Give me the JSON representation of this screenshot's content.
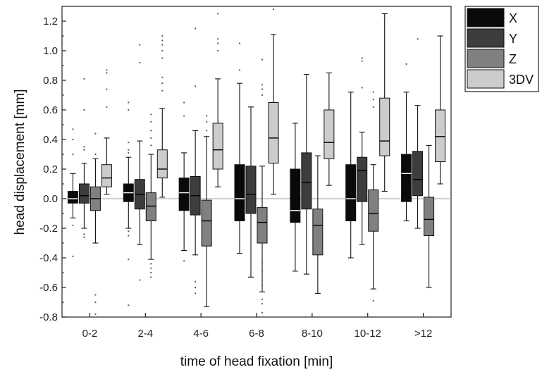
{
  "chart_data": {
    "type": "boxplot",
    "xlabel": "time of head fixation [min]",
    "ylabel": "head displacement [mm]",
    "ylim": [
      -0.8,
      1.3
    ],
    "yticks": [
      "-0.8",
      "-0.6",
      "-0.4",
      "-0.2",
      "0.0",
      "0.2",
      "0.4",
      "0.6",
      "0.8",
      "1.0",
      "1.2"
    ],
    "categories": [
      "0-2",
      "2-4",
      "4-6",
      "6-8",
      "8-10",
      "10-12",
      ">12"
    ],
    "reference_line": 0,
    "legend_position": "outside-top-right",
    "series": [
      {
        "name": "X",
        "color": "#0a0a0a",
        "median_color": "#ffffff",
        "boxes": [
          {
            "wlo": -0.13,
            "q1": -0.03,
            "median": 0.0,
            "q3": 0.05,
            "whi": 0.17,
            "outliers": [
              0.47,
              0.4,
              0.3,
              -0.18,
              -0.39
            ]
          },
          {
            "wlo": -0.2,
            "q1": -0.02,
            "median": 0.04,
            "q3": 0.1,
            "whi": 0.28,
            "outliers": [
              0.65,
              0.6,
              0.38,
              0.33,
              0.31,
              -0.22,
              -0.25,
              -0.41,
              -0.72
            ]
          },
          {
            "wlo": -0.35,
            "q1": -0.08,
            "median": 0.04,
            "q3": 0.14,
            "whi": 0.31,
            "outliers": [
              0.65,
              0.56,
              -0.42
            ]
          },
          {
            "wlo": -0.37,
            "q1": -0.15,
            "median": 0.0,
            "q3": 0.23,
            "whi": 0.78,
            "outliers": [
              1.05,
              0.87
            ]
          },
          {
            "wlo": -0.49,
            "q1": -0.16,
            "median": -0.08,
            "q3": 0.2,
            "whi": 0.51,
            "outliers": []
          },
          {
            "wlo": -0.4,
            "q1": -0.15,
            "median": 0.0,
            "q3": 0.23,
            "whi": 0.72,
            "outliers": []
          },
          {
            "wlo": -0.15,
            "q1": -0.02,
            "median": 0.17,
            "q3": 0.3,
            "whi": 0.72,
            "outliers": [
              0.91
            ]
          }
        ]
      },
      {
        "name": "Y",
        "color": "#3d3d3d",
        "median_color": "#000000",
        "boxes": [
          {
            "wlo": -0.2,
            "q1": -0.03,
            "median": 0.02,
            "q3": 0.1,
            "whi": 0.24,
            "outliers": [
              0.81,
              0.6,
              0.35,
              0.33,
              -0.24,
              -0.26
            ]
          },
          {
            "wlo": -0.31,
            "q1": -0.07,
            "median": 0.03,
            "q3": 0.13,
            "whi": 0.39,
            "outliers": [
              1.04,
              0.92,
              -0.55
            ]
          },
          {
            "wlo": -0.38,
            "q1": -0.11,
            "median": 0.02,
            "q3": 0.15,
            "whi": 0.46,
            "outliers": [
              1.15,
              0.76,
              -0.56,
              -0.6,
              -0.64
            ]
          },
          {
            "wlo": -0.53,
            "q1": -0.1,
            "median": 0.03,
            "q3": 0.22,
            "whi": 0.62,
            "outliers": []
          },
          {
            "wlo": -0.51,
            "q1": -0.07,
            "median": 0.11,
            "q3": 0.31,
            "whi": 0.84,
            "outliers": []
          },
          {
            "wlo": -0.31,
            "q1": -0.02,
            "median": 0.19,
            "q3": 0.28,
            "whi": 0.45,
            "outliers": [
              0.95,
              0.93,
              0.75
            ]
          },
          {
            "wlo": -0.2,
            "q1": 0.02,
            "median": 0.13,
            "q3": 0.32,
            "whi": 0.63,
            "outliers": [
              1.08
            ]
          }
        ]
      },
      {
        "name": "Z",
        "color": "#808080",
        "median_color": "#000000",
        "boxes": [
          {
            "wlo": -0.3,
            "q1": -0.08,
            "median": 0.0,
            "q3": 0.08,
            "whi": 0.27,
            "outliers": [
              0.44,
              0.3,
              -0.65,
              -0.7,
              -0.78
            ]
          },
          {
            "wlo": -0.41,
            "q1": -0.15,
            "median": -0.05,
            "q3": 0.04,
            "whi": 0.3,
            "outliers": [
              0.57,
              0.52,
              0.46,
              0.41,
              0.36,
              -0.44,
              -0.47,
              -0.5,
              -0.53
            ]
          },
          {
            "wlo": -0.73,
            "q1": -0.32,
            "median": -0.15,
            "q3": -0.01,
            "whi": 0.42,
            "outliers": [
              0.56,
              0.52,
              0.46
            ]
          },
          {
            "wlo": -0.63,
            "q1": -0.3,
            "median": -0.16,
            "q3": -0.06,
            "whi": 0.22,
            "outliers": [
              0.94,
              0.77,
              0.74,
              0.7,
              -0.43,
              -0.49,
              -0.55,
              -0.59,
              -0.68,
              -0.71,
              -0.77
            ]
          },
          {
            "wlo": -0.64,
            "q1": -0.38,
            "median": -0.18,
            "q3": -0.07,
            "whi": 0.29,
            "outliers": []
          },
          {
            "wlo": -0.61,
            "q1": -0.22,
            "median": -0.1,
            "q3": 0.06,
            "whi": 0.23,
            "outliers": [
              0.72,
              0.67,
              0.62,
              -0.69
            ]
          },
          {
            "wlo": -0.6,
            "q1": -0.25,
            "median": -0.14,
            "q3": 0.01,
            "whi": 0.36,
            "outliers": []
          }
        ]
      },
      {
        "name": "3DV",
        "color": "#cccccc",
        "median_color": "#000000",
        "boxes": [
          {
            "wlo": 0.03,
            "q1": 0.08,
            "median": 0.14,
            "q3": 0.23,
            "whi": 0.41,
            "outliers": [
              0.87,
              0.85,
              0.74,
              0.62
            ]
          },
          {
            "wlo": 0.01,
            "q1": 0.14,
            "median": 0.2,
            "q3": 0.33,
            "whi": 0.61,
            "outliers": [
              1.1,
              1.07,
              1.04,
              1.0,
              0.95,
              0.82,
              0.78,
              0.73
            ]
          },
          {
            "wlo": 0.08,
            "q1": 0.2,
            "median": 0.33,
            "q3": 0.51,
            "whi": 0.81,
            "outliers": [
              1.25,
              1.08,
              1.05,
              1.0
            ]
          },
          {
            "wlo": 0.03,
            "q1": 0.24,
            "median": 0.41,
            "q3": 0.65,
            "whi": 1.11,
            "outliers": [
              1.28
            ]
          },
          {
            "wlo": 0.09,
            "q1": 0.27,
            "median": 0.38,
            "q3": 0.6,
            "whi": 0.85,
            "outliers": []
          },
          {
            "wlo": 0.05,
            "q1": 0.29,
            "median": 0.39,
            "q3": 0.68,
            "whi": 1.25,
            "outliers": [
              1.23
            ]
          },
          {
            "wlo": 0.1,
            "q1": 0.25,
            "median": 0.42,
            "q3": 0.6,
            "whi": 1.1,
            "outliers": []
          }
        ]
      }
    ]
  }
}
